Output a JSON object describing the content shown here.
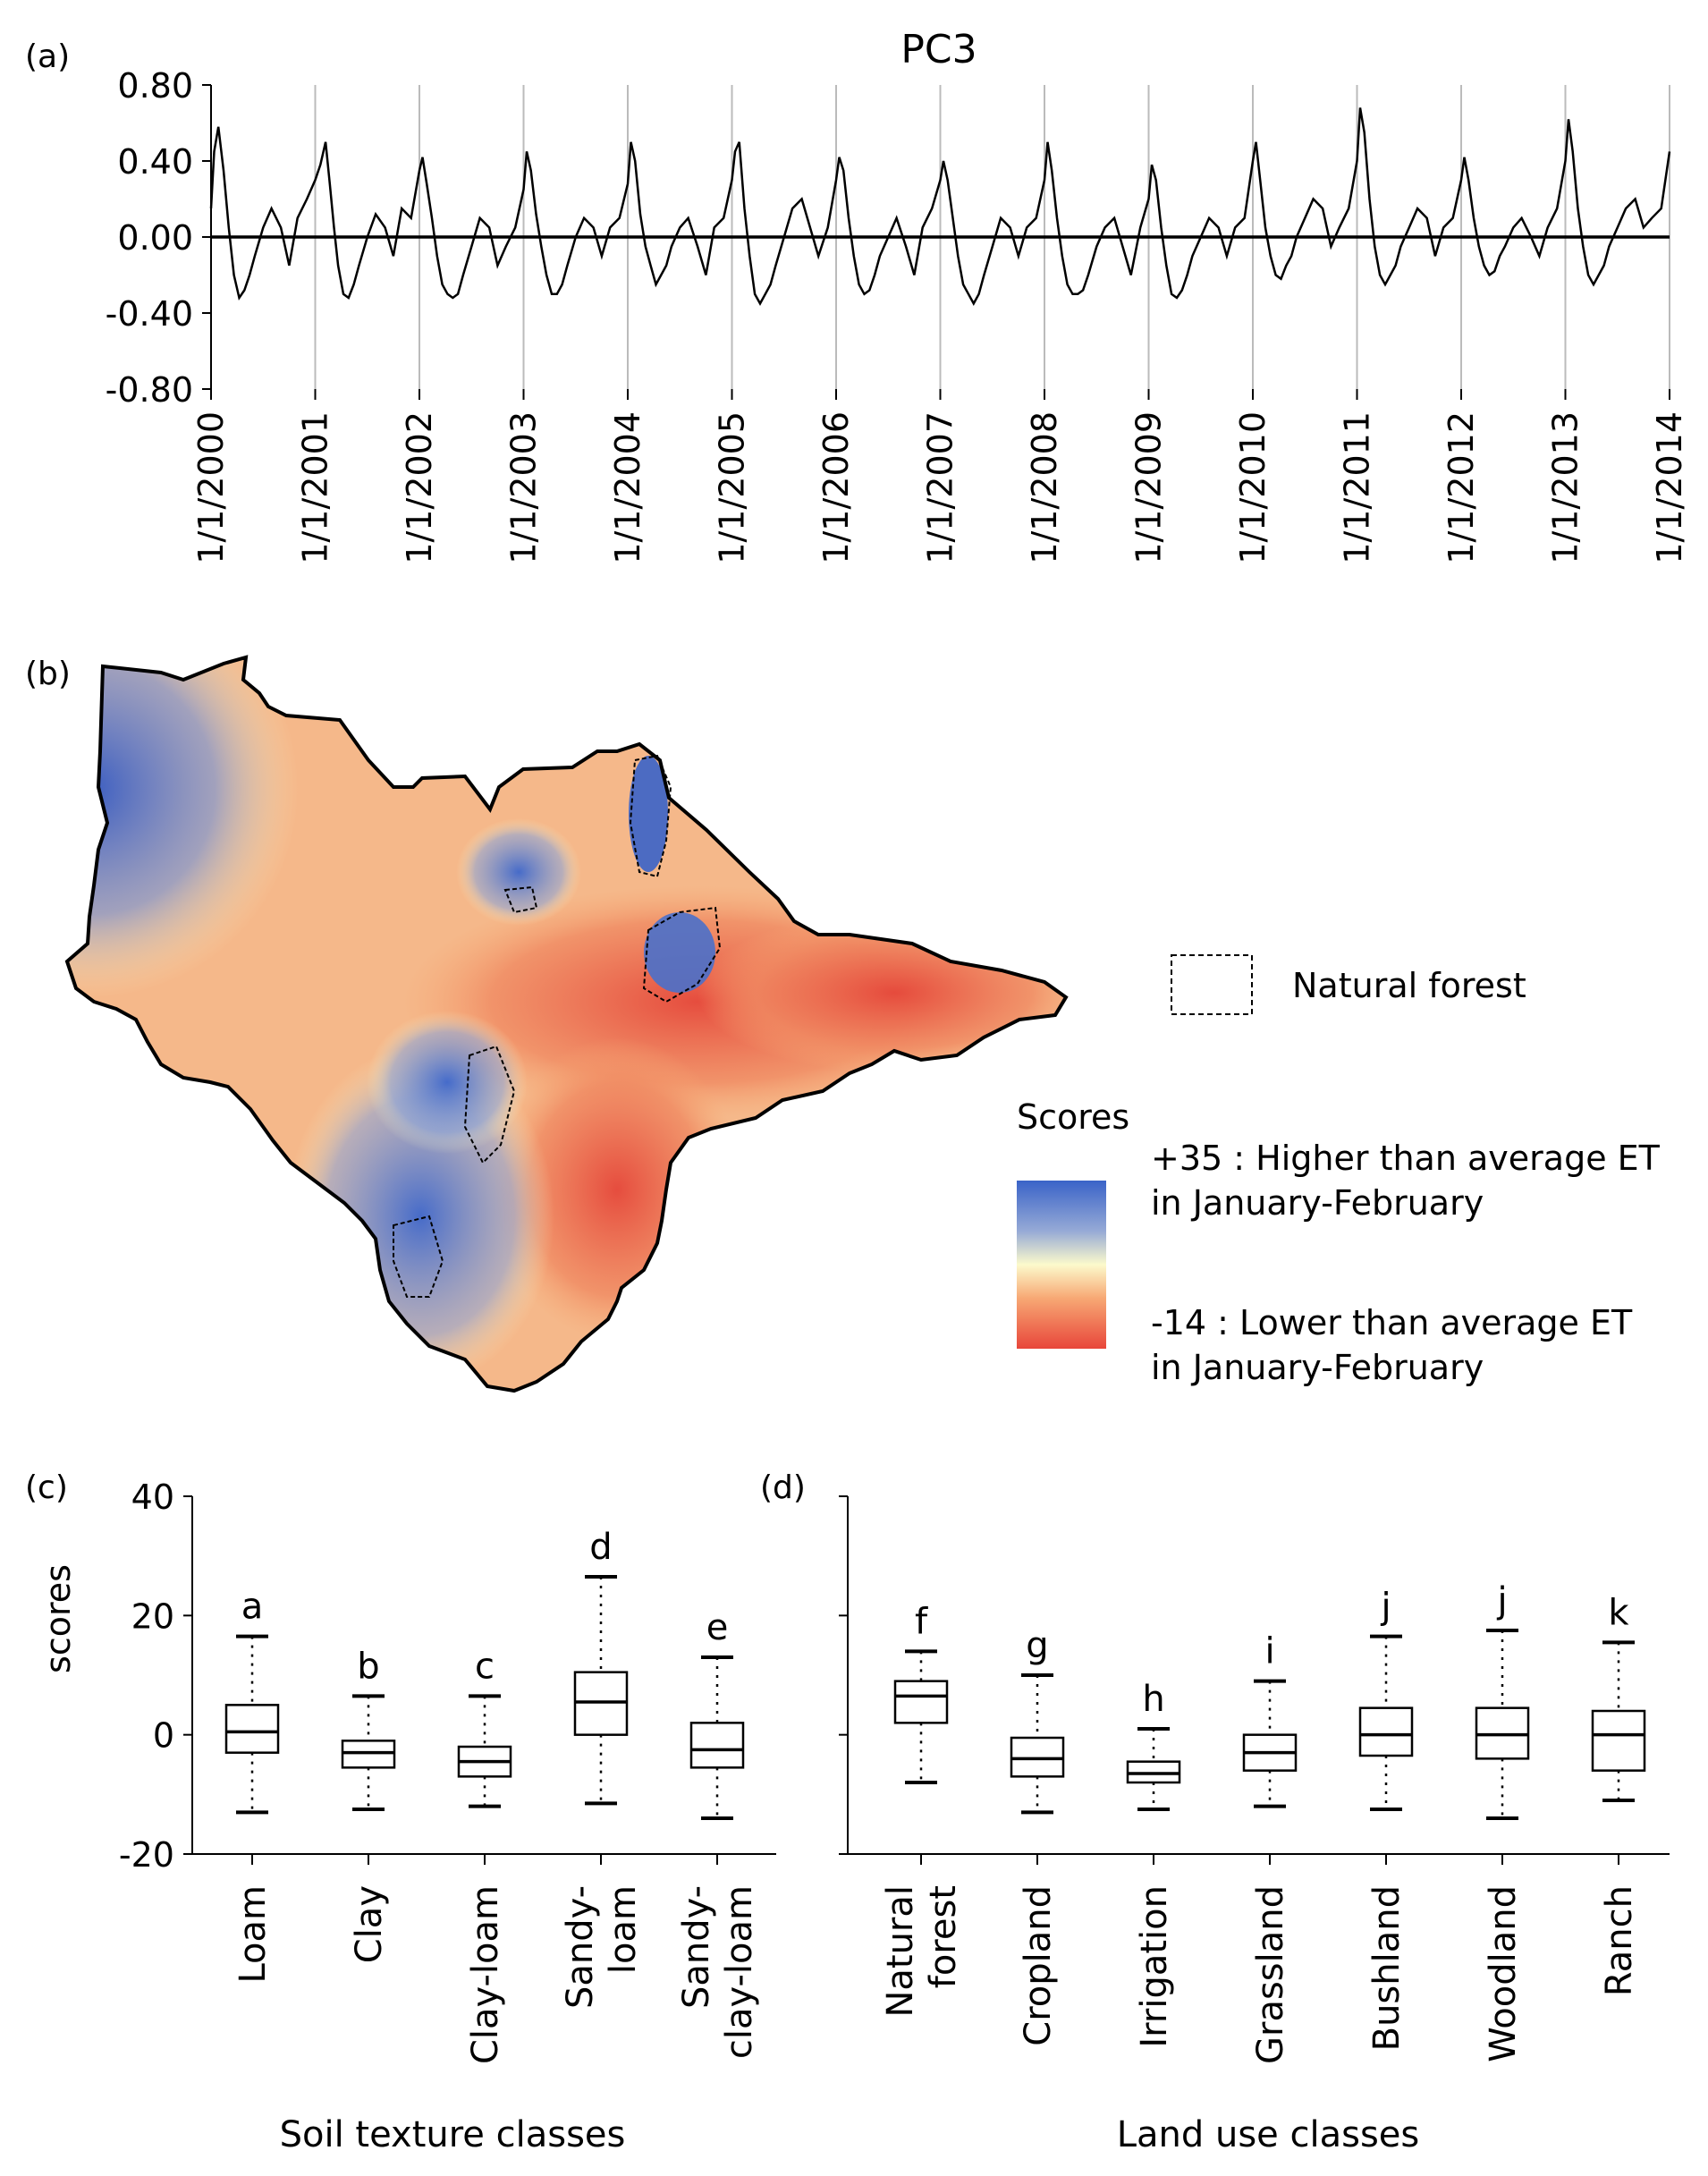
{
  "panel_labels": {
    "a": "(a)",
    "b": "(b)",
    "c": "(c)",
    "d": "(d)"
  },
  "chart_data": [
    {
      "id": "a",
      "type": "line",
      "title": "PC3",
      "xlabel": "",
      "ylabel": "",
      "ylim": [
        -0.8,
        0.8
      ],
      "yticks": [
        "0.80",
        "0.40",
        "0.00",
        "-0.40",
        "-0.80"
      ],
      "ytick_values": [
        0.8,
        0.4,
        0.0,
        -0.4,
        -0.8
      ],
      "xlim": [
        2000,
        2014
      ],
      "xticks": [
        "1/1/2000",
        "1/1/2001",
        "1/1/2002",
        "1/1/2003",
        "1/1/2004",
        "1/1/2005",
        "1/1/2006",
        "1/1/2007",
        "1/1/2008",
        "1/1/2009",
        "1/1/2010",
        "1/1/2011",
        "1/1/2012",
        "1/1/2013",
        "1/1/2014"
      ],
      "series": [
        {
          "name": "PC3",
          "x": [
            2000.0,
            2000.03,
            2000.07,
            2000.12,
            2000.17,
            2000.22,
            2000.27,
            2000.32,
            2000.37,
            2000.42,
            2000.5,
            2000.58,
            2000.67,
            2000.75,
            2000.83,
            2000.92,
            2001.0,
            2001.05,
            2001.1,
            2001.14,
            2001.18,
            2001.22,
            2001.27,
            2001.32,
            2001.37,
            2001.42,
            2001.5,
            2001.58,
            2001.67,
            2001.75,
            2001.83,
            2001.92,
            2002.0,
            2002.03,
            2002.07,
            2002.12,
            2002.17,
            2002.22,
            2002.27,
            2002.32,
            2002.37,
            2002.42,
            2002.5,
            2002.58,
            2002.67,
            2002.75,
            2002.83,
            2002.92,
            2003.0,
            2003.03,
            2003.07,
            2003.12,
            2003.17,
            2003.22,
            2003.27,
            2003.32,
            2003.37,
            2003.42,
            2003.5,
            2003.58,
            2003.67,
            2003.75,
            2003.83,
            2003.92,
            2004.0,
            2004.03,
            2004.07,
            2004.12,
            2004.17,
            2004.22,
            2004.27,
            2004.32,
            2004.37,
            2004.42,
            2004.5,
            2004.58,
            2004.67,
            2004.75,
            2004.83,
            2004.92,
            2005.0,
            2005.03,
            2005.07,
            2005.12,
            2005.17,
            2005.22,
            2005.27,
            2005.32,
            2005.37,
            2005.42,
            2005.5,
            2005.58,
            2005.67,
            2005.75,
            2005.83,
            2005.92,
            2006.0,
            2006.03,
            2006.07,
            2006.12,
            2006.17,
            2006.22,
            2006.27,
            2006.32,
            2006.37,
            2006.42,
            2006.5,
            2006.58,
            2006.67,
            2006.75,
            2006.83,
            2006.92,
            2007.0,
            2007.03,
            2007.07,
            2007.12,
            2007.17,
            2007.22,
            2007.27,
            2007.32,
            2007.37,
            2007.42,
            2007.5,
            2007.58,
            2007.67,
            2007.75,
            2007.83,
            2007.92,
            2008.0,
            2008.03,
            2008.07,
            2008.12,
            2008.17,
            2008.22,
            2008.27,
            2008.32,
            2008.37,
            2008.42,
            2008.5,
            2008.58,
            2008.67,
            2008.75,
            2008.83,
            2008.92,
            2009.0,
            2009.03,
            2009.07,
            2009.12,
            2009.17,
            2009.22,
            2009.27,
            2009.32,
            2009.37,
            2009.42,
            2009.5,
            2009.58,
            2009.67,
            2009.75,
            2009.83,
            2009.92,
            2010.0,
            2010.03,
            2010.07,
            2010.12,
            2010.17,
            2010.22,
            2010.27,
            2010.32,
            2010.37,
            2010.42,
            2010.5,
            2010.58,
            2010.67,
            2010.75,
            2010.83,
            2010.92,
            2011.0,
            2011.03,
            2011.07,
            2011.12,
            2011.17,
            2011.22,
            2011.27,
            2011.32,
            2011.37,
            2011.42,
            2011.5,
            2011.58,
            2011.67,
            2011.75,
            2011.83,
            2011.92,
            2012.0,
            2012.03,
            2012.07,
            2012.12,
            2012.17,
            2012.22,
            2012.27,
            2012.32,
            2012.37,
            2012.42,
            2012.5,
            2012.58,
            2012.67,
            2012.75,
            2012.83,
            2012.92,
            2013.0,
            2013.03,
            2013.07,
            2013.12,
            2013.17,
            2013.22,
            2013.27,
            2013.32,
            2013.37,
            2013.42,
            2013.5,
            2013.58,
            2013.67,
            2013.75,
            2013.83,
            2013.92,
            2014.0
          ],
          "y": [
            0.15,
            0.45,
            0.58,
            0.35,
            0.05,
            -0.2,
            -0.32,
            -0.28,
            -0.2,
            -0.1,
            0.05,
            0.15,
            0.05,
            -0.15,
            0.1,
            0.2,
            0.3,
            0.38,
            0.5,
            0.28,
            0.05,
            -0.15,
            -0.3,
            -0.32,
            -0.25,
            -0.15,
            0.0,
            0.12,
            0.05,
            -0.1,
            0.15,
            0.1,
            0.35,
            0.42,
            0.28,
            0.1,
            -0.1,
            -0.25,
            -0.3,
            -0.32,
            -0.3,
            -0.2,
            -0.05,
            0.1,
            0.05,
            -0.15,
            -0.05,
            0.05,
            0.25,
            0.45,
            0.35,
            0.12,
            -0.05,
            -0.2,
            -0.3,
            -0.3,
            -0.25,
            -0.15,
            0.0,
            0.1,
            0.05,
            -0.1,
            0.05,
            0.1,
            0.28,
            0.5,
            0.4,
            0.12,
            -0.05,
            -0.15,
            -0.25,
            -0.2,
            -0.15,
            -0.05,
            0.05,
            0.1,
            -0.05,
            -0.2,
            0.05,
            0.1,
            0.3,
            0.45,
            0.5,
            0.15,
            -0.1,
            -0.3,
            -0.35,
            -0.3,
            -0.25,
            -0.15,
            0.0,
            0.15,
            0.2,
            0.05,
            -0.1,
            0.05,
            0.3,
            0.42,
            0.35,
            0.1,
            -0.1,
            -0.25,
            -0.3,
            -0.28,
            -0.2,
            -0.1,
            0.0,
            0.1,
            -0.05,
            -0.2,
            0.05,
            0.15,
            0.3,
            0.4,
            0.3,
            0.1,
            -0.1,
            -0.25,
            -0.3,
            -0.35,
            -0.3,
            -0.2,
            -0.05,
            0.1,
            0.05,
            -0.1,
            0.05,
            0.1,
            0.3,
            0.5,
            0.35,
            0.1,
            -0.1,
            -0.25,
            -0.3,
            -0.3,
            -0.28,
            -0.2,
            -0.05,
            0.05,
            0.1,
            -0.05,
            -0.2,
            0.05,
            0.2,
            0.38,
            0.3,
            0.05,
            -0.15,
            -0.3,
            -0.32,
            -0.28,
            -0.2,
            -0.1,
            0.0,
            0.1,
            0.05,
            -0.1,
            0.05,
            0.1,
            0.4,
            0.5,
            0.3,
            0.05,
            -0.1,
            -0.2,
            -0.22,
            -0.15,
            -0.1,
            0.0,
            0.1,
            0.2,
            0.15,
            -0.05,
            0.05,
            0.15,
            0.4,
            0.68,
            0.55,
            0.2,
            -0.05,
            -0.2,
            -0.25,
            -0.2,
            -0.15,
            -0.05,
            0.05,
            0.15,
            0.1,
            -0.1,
            0.05,
            0.1,
            0.3,
            0.42,
            0.3,
            0.1,
            -0.05,
            -0.15,
            -0.2,
            -0.18,
            -0.1,
            -0.05,
            0.05,
            0.1,
            0.0,
            -0.1,
            0.05,
            0.15,
            0.4,
            0.62,
            0.45,
            0.15,
            -0.05,
            -0.2,
            -0.25,
            -0.2,
            -0.15,
            -0.05,
            0.05,
            0.15,
            0.2,
            0.05,
            0.1,
            0.15,
            0.45
          ]
        }
      ]
    },
    {
      "id": "b",
      "type": "map",
      "legend_forest_label": "Natural forest",
      "colorbar_title": "Scores",
      "colorbar_max_label": "+35 : Higher than average  ET",
      "colorbar_max_sub": "in January-February",
      "colorbar_min_label": "-14 : Lower than average  ET",
      "colorbar_min_sub": "in January-February",
      "colorbar_colors": [
        "#3a63c8",
        "#96aad6",
        "#fcfacc",
        "#f7a874",
        "#e8463a"
      ],
      "range": [
        -14,
        35
      ]
    },
    {
      "id": "c",
      "type": "box",
      "xlabel": "Soil texture classes",
      "ylabel": "scores",
      "ylim": [
        -20,
        40
      ],
      "yticks": [
        "40",
        "20",
        "0",
        "-20"
      ],
      "ytick_values": [
        40,
        20,
        0,
        -20
      ],
      "categories": [
        [
          "Loam"
        ],
        [
          "Clay"
        ],
        [
          "Clay-loam"
        ],
        [
          "Sandy-",
          "loam"
        ],
        [
          "Sandy-",
          "clay-loam"
        ]
      ],
      "letters": [
        "a",
        "b",
        "c",
        "d",
        "e"
      ],
      "boxes": [
        {
          "wlo": -13,
          "q1": -3,
          "median": 0.5,
          "q3": 5,
          "whi": 16.5
        },
        {
          "wlo": -12.5,
          "q1": -5.5,
          "median": -3,
          "q3": -1,
          "whi": 6.5
        },
        {
          "wlo": -12,
          "q1": -7,
          "median": -4.5,
          "q3": -2,
          "whi": 6.5
        },
        {
          "wlo": -11.5,
          "q1": 0,
          "median": 5.5,
          "q3": 10.5,
          "whi": 26.5
        },
        {
          "wlo": -14,
          "q1": -5.5,
          "median": -2.5,
          "q3": 2,
          "whi": 13
        }
      ]
    },
    {
      "id": "d",
      "type": "box",
      "xlabel": "Land use classes",
      "ylabel": "",
      "ylim": [
        -20,
        40
      ],
      "categories": [
        [
          "Natural",
          "forest"
        ],
        [
          "Cropland"
        ],
        [
          "Irrigation"
        ],
        [
          "Grassland"
        ],
        [
          "Bushland"
        ],
        [
          "Woodland"
        ],
        [
          "Ranch"
        ]
      ],
      "letters": [
        "f",
        "g",
        "h",
        "i",
        "j",
        "j",
        "k"
      ],
      "boxes": [
        {
          "wlo": -8,
          "q1": 2,
          "median": 6.5,
          "q3": 9,
          "whi": 14
        },
        {
          "wlo": -13,
          "q1": -7,
          "median": -4,
          "q3": -0.5,
          "whi": 10
        },
        {
          "wlo": -12.5,
          "q1": -8,
          "median": -6.5,
          "q3": -4.5,
          "whi": 1
        },
        {
          "wlo": -12,
          "q1": -6,
          "median": -3,
          "q3": 0,
          "whi": 9
        },
        {
          "wlo": -12.5,
          "q1": -3.5,
          "median": 0,
          "q3": 4.5,
          "whi": 16.5
        },
        {
          "wlo": -14,
          "q1": -4,
          "median": 0,
          "q3": 4.5,
          "whi": 17.5
        },
        {
          "wlo": -11,
          "q1": -6,
          "median": 0,
          "q3": 4,
          "whi": 15.5
        }
      ]
    }
  ]
}
